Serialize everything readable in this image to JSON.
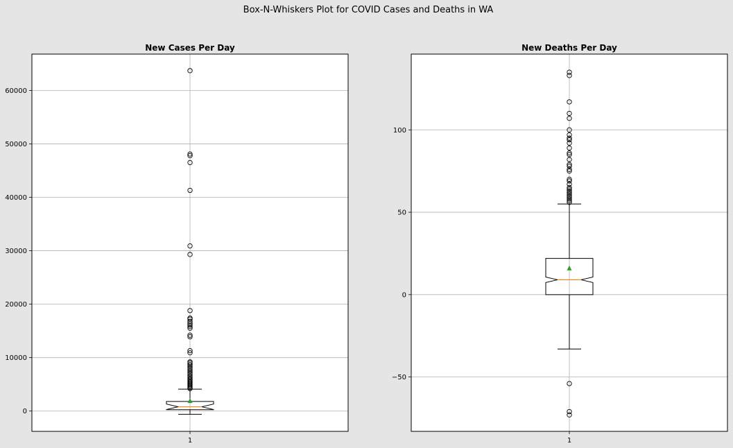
{
  "figure": {
    "suptitle": "Box-N-Whiskers Plot for COVID Cases and Deaths in WA",
    "background": "#e5e5e5"
  },
  "colors": {
    "median": "#ff7f0e",
    "mean_marker": "#2ca02c",
    "box": "#000000",
    "grid": "#b0b0b0",
    "plot_bg": "#ffffff"
  },
  "chart_data": [
    {
      "type": "box",
      "title": "New Cases Per Day",
      "notch": true,
      "showmeans": true,
      "grid": true,
      "categories": [
        "1"
      ],
      "ylim": [
        -3800,
        66800
      ],
      "yticks": [
        0,
        10000,
        20000,
        30000,
        40000,
        50000,
        60000
      ],
      "ytick_labels": [
        "0",
        "10000",
        "20000",
        "30000",
        "40000",
        "50000",
        "60000"
      ],
      "stats": {
        "whisker_low": -600,
        "q1": 250,
        "median": 800,
        "q3": 1800,
        "whisker_high": 4100,
        "mean": 1900
      },
      "outliers": [
        63700,
        48100,
        47800,
        46500,
        41300,
        30900,
        29300,
        18800,
        17400,
        17200,
        16800,
        16400,
        16100,
        15800,
        15500,
        14200,
        13900,
        11300,
        10900,
        9200,
        9000,
        8700,
        8400,
        8100,
        7800,
        7500,
        7200,
        6900,
        6600,
        6300,
        6000,
        5800,
        5600,
        5400,
        5200,
        5000,
        4800,
        4600,
        4400,
        4200
      ]
    },
    {
      "type": "box",
      "title": "New Deaths Per Day",
      "notch": true,
      "showmeans": true,
      "grid": true,
      "categories": [
        "1"
      ],
      "ylim": [
        -83,
        146
      ],
      "yticks": [
        -50,
        0,
        50,
        100
      ],
      "ytick_labels": [
        "−50",
        "0",
        "50",
        "100"
      ],
      "stats": {
        "whisker_low": -33,
        "q1": 0,
        "median": 9,
        "q3": 22,
        "whisker_high": 55,
        "mean": 16
      },
      "outliers": [
        135,
        133,
        117,
        110,
        107,
        100,
        97,
        95,
        94,
        92,
        89,
        86,
        85,
        82,
        79,
        78,
        76,
        75,
        70,
        69,
        67,
        65,
        64,
        63,
        62,
        61,
        60,
        59,
        58,
        57,
        56,
        -54,
        -71,
        -73
      ]
    }
  ]
}
